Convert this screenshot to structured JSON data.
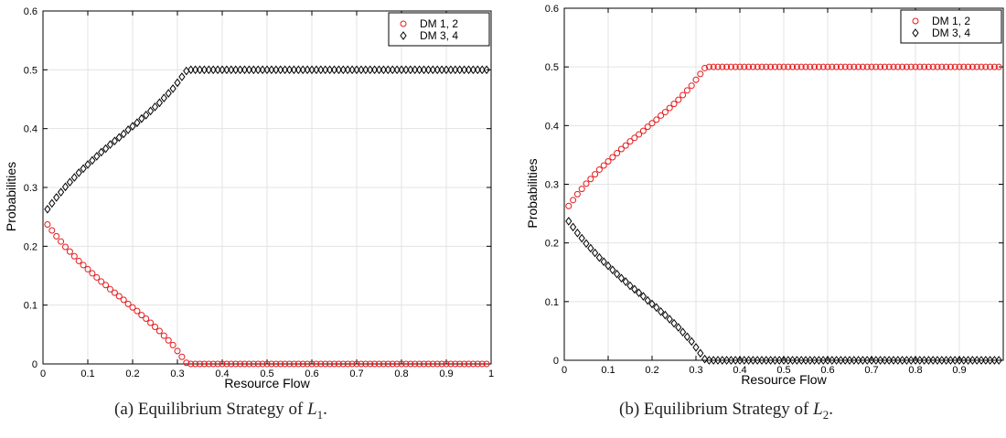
{
  "captions": [
    {
      "prefix": "(a)  Equilibrium Strategy of ",
      "var": "L",
      "sub": "1",
      "suffix": "."
    },
    {
      "prefix": "(b)  Equilibrium Strategy of ",
      "var": "L",
      "sub": "2",
      "suffix": "."
    }
  ],
  "chart_data": [
    {
      "type": "scatter",
      "title": "",
      "xlabel": "Resource Flow",
      "ylabel": "Probabilities",
      "xlim": [
        0,
        1
      ],
      "ylim": [
        0,
        0.6
      ],
      "xticks": [
        "0",
        "0.1",
        "0.2",
        "0.3",
        "0.4",
        "0.5",
        "0.6",
        "0.7",
        "0.8",
        "0.9",
        "1"
      ],
      "yticks": [
        "0",
        "0.1",
        "0.2",
        "0.3",
        "0.4",
        "0.5",
        "0.6"
      ],
      "grid": true,
      "legend_position": "top-right",
      "series": [
        {
          "name": "DM 1, 2",
          "marker": "circle",
          "color": "#e41a1c",
          "x": [
            0.01,
            0.02,
            0.03,
            0.04,
            0.05,
            0.06,
            0.07,
            0.08,
            0.09,
            0.1,
            0.11,
            0.12,
            0.13,
            0.14,
            0.15,
            0.16,
            0.17,
            0.18,
            0.19,
            0.2,
            0.21,
            0.22,
            0.23,
            0.24,
            0.25,
            0.26,
            0.27,
            0.28,
            0.29,
            0.3,
            0.31,
            0.32,
            0.33,
            0.34,
            0.35,
            0.36,
            0.37,
            0.38,
            0.39,
            0.4,
            0.41,
            0.42,
            0.43,
            0.44,
            0.45,
            0.46,
            0.47,
            0.48,
            0.49,
            0.5,
            0.51,
            0.52,
            0.53,
            0.54,
            0.55,
            0.56,
            0.57,
            0.58,
            0.59,
            0.6,
            0.61,
            0.62,
            0.63,
            0.64,
            0.65,
            0.66,
            0.67,
            0.68,
            0.69,
            0.7,
            0.71,
            0.72,
            0.73,
            0.74,
            0.75,
            0.76,
            0.77,
            0.78,
            0.79,
            0.8,
            0.81,
            0.82,
            0.83,
            0.84,
            0.85,
            0.86,
            0.87,
            0.88,
            0.89,
            0.9,
            0.91,
            0.92,
            0.93,
            0.94,
            0.95,
            0.96,
            0.97,
            0.98,
            0.99
          ],
          "y": [
            0.237,
            0.227,
            0.217,
            0.208,
            0.199,
            0.191,
            0.183,
            0.175,
            0.168,
            0.161,
            0.154,
            0.147,
            0.14,
            0.134,
            0.127,
            0.121,
            0.115,
            0.109,
            0.102,
            0.096,
            0.09,
            0.083,
            0.077,
            0.07,
            0.063,
            0.056,
            0.048,
            0.04,
            0.032,
            0.022,
            0.012,
            0.002,
            0,
            0,
            0,
            0,
            0,
            0,
            0,
            0,
            0,
            0,
            0,
            0,
            0,
            0,
            0,
            0,
            0,
            0,
            0,
            0,
            0,
            0,
            0,
            0,
            0,
            0,
            0,
            0,
            0,
            0,
            0,
            0,
            0,
            0,
            0,
            0,
            0,
            0,
            0,
            0,
            0,
            0,
            0,
            0,
            0,
            0,
            0,
            0,
            0,
            0,
            0,
            0,
            0,
            0,
            0,
            0,
            0,
            0,
            0,
            0,
            0,
            0,
            0,
            0,
            0,
            0,
            0
          ]
        },
        {
          "name": "DM 3, 4",
          "marker": "diamond",
          "color": "#000000",
          "x": [
            0.01,
            0.02,
            0.03,
            0.04,
            0.05,
            0.06,
            0.07,
            0.08,
            0.09,
            0.1,
            0.11,
            0.12,
            0.13,
            0.14,
            0.15,
            0.16,
            0.17,
            0.18,
            0.19,
            0.2,
            0.21,
            0.22,
            0.23,
            0.24,
            0.25,
            0.26,
            0.27,
            0.28,
            0.29,
            0.3,
            0.31,
            0.32,
            0.33,
            0.34,
            0.35,
            0.36,
            0.37,
            0.38,
            0.39,
            0.4,
            0.41,
            0.42,
            0.43,
            0.44,
            0.45,
            0.46,
            0.47,
            0.48,
            0.49,
            0.5,
            0.51,
            0.52,
            0.53,
            0.54,
            0.55,
            0.56,
            0.57,
            0.58,
            0.59,
            0.6,
            0.61,
            0.62,
            0.63,
            0.64,
            0.65,
            0.66,
            0.67,
            0.68,
            0.69,
            0.7,
            0.71,
            0.72,
            0.73,
            0.74,
            0.75,
            0.76,
            0.77,
            0.78,
            0.79,
            0.8,
            0.81,
            0.82,
            0.83,
            0.84,
            0.85,
            0.86,
            0.87,
            0.88,
            0.89,
            0.9,
            0.91,
            0.92,
            0.93,
            0.94,
            0.95,
            0.96,
            0.97,
            0.98,
            0.99
          ],
          "y": [
            0.263,
            0.273,
            0.283,
            0.292,
            0.301,
            0.309,
            0.317,
            0.325,
            0.332,
            0.339,
            0.346,
            0.353,
            0.36,
            0.366,
            0.373,
            0.379,
            0.385,
            0.391,
            0.398,
            0.404,
            0.41,
            0.417,
            0.423,
            0.43,
            0.437,
            0.444,
            0.452,
            0.46,
            0.468,
            0.478,
            0.488,
            0.498,
            0.5,
            0.5,
            0.5,
            0.5,
            0.5,
            0.5,
            0.5,
            0.5,
            0.5,
            0.5,
            0.5,
            0.5,
            0.5,
            0.5,
            0.5,
            0.5,
            0.5,
            0.5,
            0.5,
            0.5,
            0.5,
            0.5,
            0.5,
            0.5,
            0.5,
            0.5,
            0.5,
            0.5,
            0.5,
            0.5,
            0.5,
            0.5,
            0.5,
            0.5,
            0.5,
            0.5,
            0.5,
            0.5,
            0.5,
            0.5,
            0.5,
            0.5,
            0.5,
            0.5,
            0.5,
            0.5,
            0.5,
            0.5,
            0.5,
            0.5,
            0.5,
            0.5,
            0.5,
            0.5,
            0.5,
            0.5,
            0.5,
            0.5,
            0.5,
            0.5,
            0.5,
            0.5,
            0.5,
            0.5,
            0.5,
            0.5,
            0.5
          ]
        }
      ]
    },
    {
      "type": "scatter",
      "title": "",
      "xlabel": "Resource Flow",
      "ylabel": "Probabilities",
      "xlim": [
        0,
        1
      ],
      "ylim": [
        0,
        0.6
      ],
      "xticks": [
        "0",
        "0.1",
        "0.2",
        "0.3",
        "0.4",
        "0.5",
        "0.6",
        "0.7",
        "0.8",
        "0.9"
      ],
      "yticks": [
        "0",
        "0.1",
        "0.2",
        "0.3",
        "0.4",
        "0.5",
        "0.6"
      ],
      "grid": true,
      "legend_position": "top-right",
      "series": [
        {
          "name": "DM 1, 2",
          "marker": "circle",
          "color": "#e41a1c",
          "x": [
            0.01,
            0.02,
            0.03,
            0.04,
            0.05,
            0.06,
            0.07,
            0.08,
            0.09,
            0.1,
            0.11,
            0.12,
            0.13,
            0.14,
            0.15,
            0.16,
            0.17,
            0.18,
            0.19,
            0.2,
            0.21,
            0.22,
            0.23,
            0.24,
            0.25,
            0.26,
            0.27,
            0.28,
            0.29,
            0.3,
            0.31,
            0.32,
            0.33,
            0.34,
            0.35,
            0.36,
            0.37,
            0.38,
            0.39,
            0.4,
            0.41,
            0.42,
            0.43,
            0.44,
            0.45,
            0.46,
            0.47,
            0.48,
            0.49,
            0.5,
            0.51,
            0.52,
            0.53,
            0.54,
            0.55,
            0.56,
            0.57,
            0.58,
            0.59,
            0.6,
            0.61,
            0.62,
            0.63,
            0.64,
            0.65,
            0.66,
            0.67,
            0.68,
            0.69,
            0.7,
            0.71,
            0.72,
            0.73,
            0.74,
            0.75,
            0.76,
            0.77,
            0.78,
            0.79,
            0.8,
            0.81,
            0.82,
            0.83,
            0.84,
            0.85,
            0.86,
            0.87,
            0.88,
            0.89,
            0.9,
            0.91,
            0.92,
            0.93,
            0.94,
            0.95,
            0.96,
            0.97,
            0.98,
            0.99
          ],
          "y": [
            0.263,
            0.273,
            0.283,
            0.292,
            0.301,
            0.309,
            0.317,
            0.325,
            0.332,
            0.339,
            0.346,
            0.353,
            0.36,
            0.366,
            0.373,
            0.379,
            0.385,
            0.391,
            0.398,
            0.404,
            0.41,
            0.417,
            0.423,
            0.43,
            0.437,
            0.444,
            0.452,
            0.46,
            0.468,
            0.478,
            0.488,
            0.498,
            0.5,
            0.5,
            0.5,
            0.5,
            0.5,
            0.5,
            0.5,
            0.5,
            0.5,
            0.5,
            0.5,
            0.5,
            0.5,
            0.5,
            0.5,
            0.5,
            0.5,
            0.5,
            0.5,
            0.5,
            0.5,
            0.5,
            0.5,
            0.5,
            0.5,
            0.5,
            0.5,
            0.5,
            0.5,
            0.5,
            0.5,
            0.5,
            0.5,
            0.5,
            0.5,
            0.5,
            0.5,
            0.5,
            0.5,
            0.5,
            0.5,
            0.5,
            0.5,
            0.5,
            0.5,
            0.5,
            0.5,
            0.5,
            0.5,
            0.5,
            0.5,
            0.5,
            0.5,
            0.5,
            0.5,
            0.5,
            0.5,
            0.5,
            0.5,
            0.5,
            0.5,
            0.5,
            0.5,
            0.5,
            0.5,
            0.5,
            0.5
          ]
        },
        {
          "name": "DM 3, 4",
          "marker": "diamond",
          "color": "#000000",
          "x": [
            0.01,
            0.02,
            0.03,
            0.04,
            0.05,
            0.06,
            0.07,
            0.08,
            0.09,
            0.1,
            0.11,
            0.12,
            0.13,
            0.14,
            0.15,
            0.16,
            0.17,
            0.18,
            0.19,
            0.2,
            0.21,
            0.22,
            0.23,
            0.24,
            0.25,
            0.26,
            0.27,
            0.28,
            0.29,
            0.3,
            0.31,
            0.32,
            0.33,
            0.34,
            0.35,
            0.36,
            0.37,
            0.38,
            0.39,
            0.4,
            0.41,
            0.42,
            0.43,
            0.44,
            0.45,
            0.46,
            0.47,
            0.48,
            0.49,
            0.5,
            0.51,
            0.52,
            0.53,
            0.54,
            0.55,
            0.56,
            0.57,
            0.58,
            0.59,
            0.6,
            0.61,
            0.62,
            0.63,
            0.64,
            0.65,
            0.66,
            0.67,
            0.68,
            0.69,
            0.7,
            0.71,
            0.72,
            0.73,
            0.74,
            0.75,
            0.76,
            0.77,
            0.78,
            0.79,
            0.8,
            0.81,
            0.82,
            0.83,
            0.84,
            0.85,
            0.86,
            0.87,
            0.88,
            0.89,
            0.9,
            0.91,
            0.92,
            0.93,
            0.94,
            0.95,
            0.96,
            0.97,
            0.98,
            0.99
          ],
          "y": [
            0.237,
            0.227,
            0.217,
            0.208,
            0.199,
            0.191,
            0.183,
            0.175,
            0.168,
            0.161,
            0.154,
            0.147,
            0.14,
            0.134,
            0.127,
            0.121,
            0.115,
            0.109,
            0.102,
            0.096,
            0.09,
            0.083,
            0.077,
            0.07,
            0.063,
            0.056,
            0.048,
            0.04,
            0.032,
            0.022,
            0.012,
            0.002,
            0,
            0,
            0,
            0,
            0,
            0,
            0,
            0,
            0,
            0,
            0,
            0,
            0,
            0,
            0,
            0,
            0,
            0,
            0,
            0,
            0,
            0,
            0,
            0,
            0,
            0,
            0,
            0,
            0,
            0,
            0,
            0,
            0,
            0,
            0,
            0,
            0,
            0,
            0,
            0,
            0,
            0,
            0,
            0,
            0,
            0,
            0,
            0,
            0,
            0,
            0,
            0,
            0,
            0,
            0,
            0,
            0,
            0,
            0,
            0,
            0,
            0,
            0,
            0,
            0,
            0,
            0
          ]
        }
      ]
    }
  ]
}
